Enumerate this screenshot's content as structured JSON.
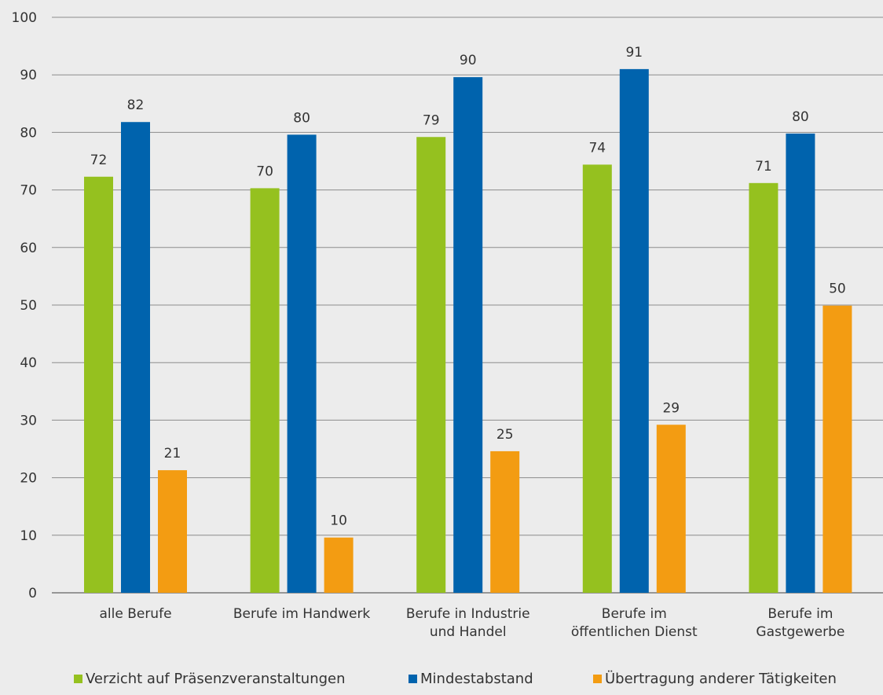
{
  "chart_data": {
    "type": "bar",
    "title": "",
    "xlabel": "",
    "ylabel": "",
    "ylim": [
      0,
      100
    ],
    "yticks": [
      0,
      10,
      20,
      30,
      40,
      50,
      60,
      70,
      80,
      90,
      100
    ],
    "grid": true,
    "legend_position": "bottom",
    "categories": [
      [
        "alle Berufe"
      ],
      [
        "Berufe im Handwerk"
      ],
      [
        "Berufe in Industrie",
        "und Handel"
      ],
      [
        "Berufe im",
        "öffentlichen Dienst"
      ],
      [
        "Berufe im",
        "Gastgewerbe"
      ]
    ],
    "series": [
      {
        "name": "Verzicht auf Präsenzveranstaltungen",
        "color": "#95c11f",
        "values": [
          72.3,
          70.3,
          79.2,
          74.4,
          71.2
        ],
        "labels": [
          "72",
          "70",
          "79",
          "74",
          "71"
        ]
      },
      {
        "name": "Mindestabstand",
        "color": "#0063ad",
        "values": [
          81.8,
          79.6,
          89.6,
          91.0,
          79.8
        ],
        "labels": [
          "82",
          "80",
          "90",
          "91",
          "80"
        ]
      },
      {
        "name": "Übertragung anderer Tätigkeiten",
        "color": "#f39c12",
        "values": [
          21.3,
          9.6,
          24.6,
          29.2,
          49.9
        ],
        "labels": [
          "21",
          "10",
          "25",
          "29",
          "50"
        ]
      }
    ]
  }
}
